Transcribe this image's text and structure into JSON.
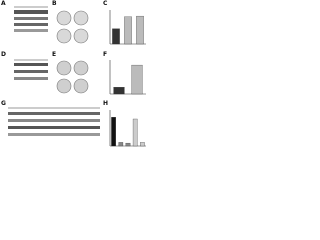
{
  "panels": [
    "A",
    "B",
    "C",
    "D",
    "E",
    "F",
    "G",
    "H"
  ],
  "charts": [
    {
      "values": [
        45,
        80,
        82
      ],
      "colors": [
        "#333333",
        "#bbbbbb",
        "#bbbbbb"
      ],
      "ylim": [
        0,
        100
      ]
    },
    {
      "values": [
        20,
        85
      ],
      "colors": [
        "#333333",
        "#bbbbbb"
      ],
      "ylim": [
        0,
        100
      ]
    },
    {
      "values": [
        80,
        10,
        8,
        75,
        10
      ],
      "colors": [
        "#111111",
        "#888888",
        "#888888",
        "#cccccc",
        "#cccccc"
      ],
      "ylim": [
        0,
        100
      ]
    }
  ]
}
